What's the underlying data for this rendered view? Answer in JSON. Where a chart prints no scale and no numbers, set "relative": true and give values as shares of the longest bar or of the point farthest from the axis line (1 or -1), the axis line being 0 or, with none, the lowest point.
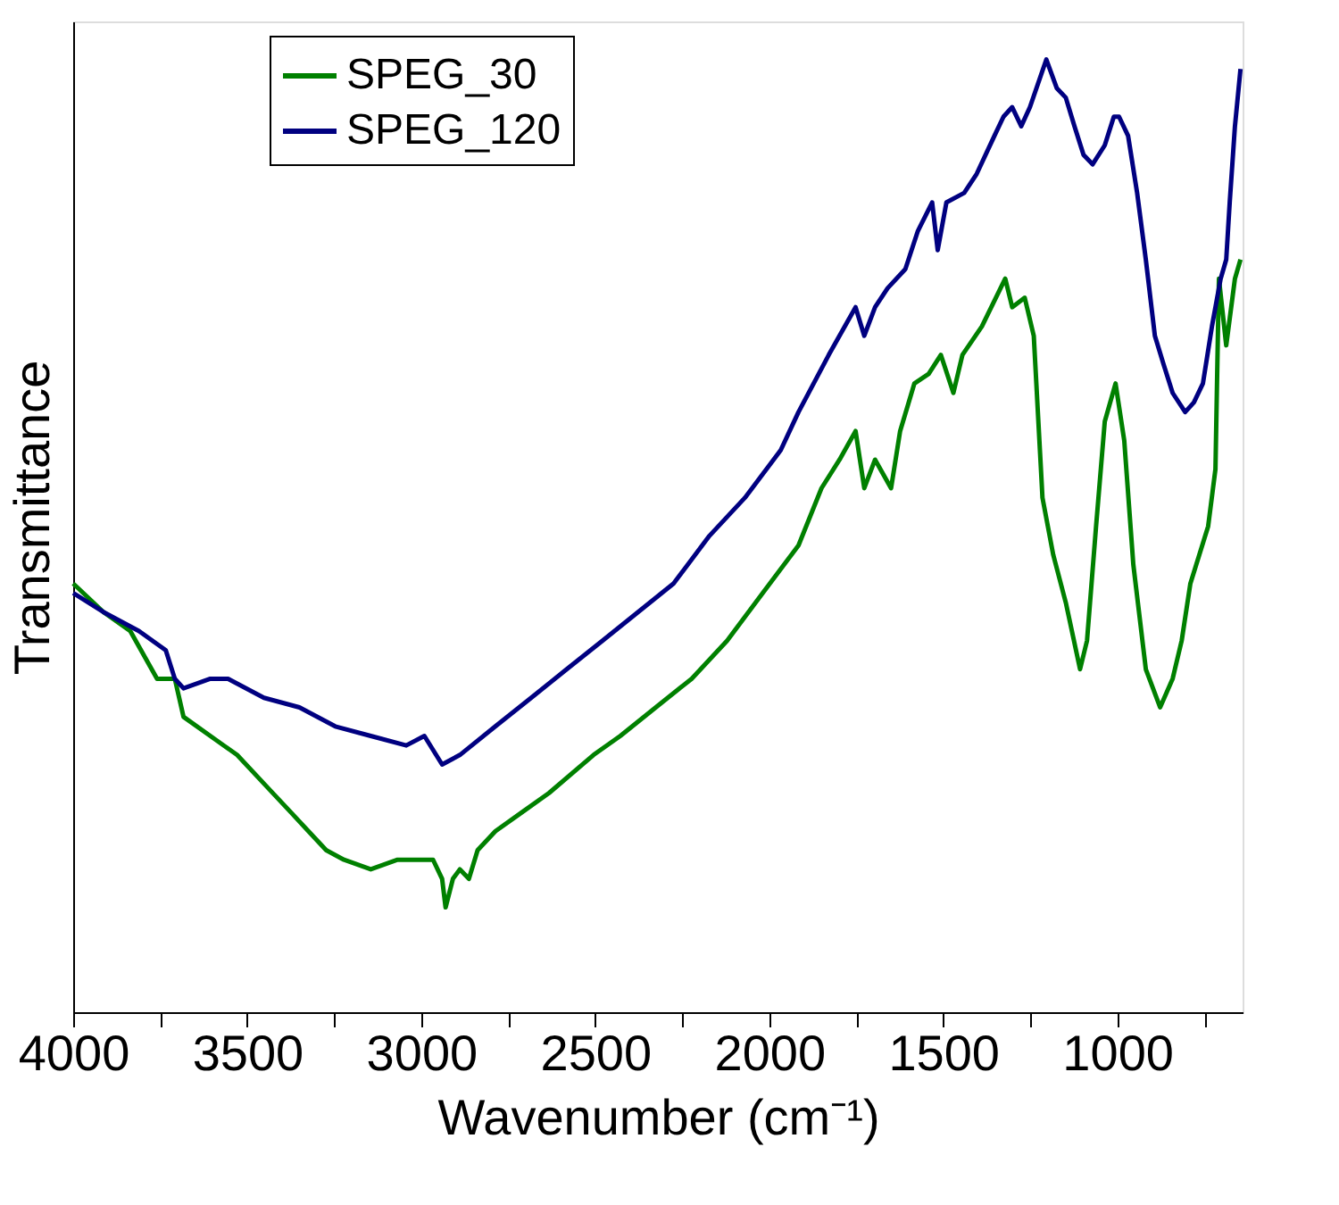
{
  "chart_data": {
    "type": "line",
    "relative": true,
    "xlabel": "Wavenumber (cm⁻¹)",
    "ylabel": "Transmittance",
    "xlim": [
      4000,
      640
    ],
    "xticks": [
      4000,
      {
        "value": 3750,
        "label": null
      },
      3500,
      {
        "value": 3250,
        "label": null
      },
      3000,
      {
        "value": 2750,
        "label": null
      },
      2500,
      {
        "value": 2250,
        "label": null
      },
      2000,
      {
        "value": 1750,
        "label": null
      },
      1500,
      {
        "value": 1250,
        "label": null
      },
      1000,
      {
        "value": 750,
        "label": null
      }
    ],
    "legend": "top left",
    "grid": false,
    "line_style": "solid",
    "marker": "none",
    "tick_labels": "x",
    "series": [
      {
        "name": "SPEG_30",
        "color": "#008000",
        "x": [
          4000,
          3913,
          3836,
          3759,
          3708,
          3683,
          3606,
          3529,
          3452,
          3375,
          3324,
          3273,
          3222,
          3145,
          3068,
          2991,
          2966,
          2940,
          2930,
          2909,
          2889,
          2863,
          2838,
          2787,
          2710,
          2633,
          2505,
          2428,
          2326,
          2223,
          2121,
          2019,
          1916,
          1850,
          1798,
          1752,
          1727,
          1696,
          1650,
          1624,
          1583,
          1542,
          1507,
          1471,
          1445,
          1389,
          1322,
          1302,
          1266,
          1240,
          1215,
          1184,
          1148,
          1107,
          1087,
          1061,
          1036,
          1005,
          980,
          954,
          918,
          877,
          841,
          815,
          790,
          739,
          718,
          708,
          687,
          662,
          646
        ],
        "values": [
          0.45,
          0.42,
          0.4,
          0.35,
          0.35,
          0.31,
          0.29,
          0.27,
          0.24,
          0.21,
          0.19,
          0.17,
          0.16,
          0.15,
          0.16,
          0.16,
          0.16,
          0.14,
          0.11,
          0.14,
          0.15,
          0.14,
          0.17,
          0.19,
          0.21,
          0.23,
          0.27,
          0.29,
          0.32,
          0.35,
          0.39,
          0.44,
          0.49,
          0.55,
          0.58,
          0.61,
          0.55,
          0.58,
          0.55,
          0.61,
          0.66,
          0.67,
          0.69,
          0.65,
          0.69,
          0.72,
          0.77,
          0.74,
          0.75,
          0.71,
          0.54,
          0.48,
          0.43,
          0.36,
          0.39,
          0.51,
          0.62,
          0.66,
          0.6,
          0.47,
          0.36,
          0.32,
          0.35,
          0.39,
          0.45,
          0.51,
          0.57,
          0.77,
          0.7,
          0.77,
          0.79
        ]
      },
      {
        "name": "SPEG_120",
        "color": "#000080",
        "x": [
          4000,
          3913,
          3811,
          3734,
          3708,
          3683,
          3606,
          3555,
          3452,
          3350,
          3247,
          3145,
          3043,
          2991,
          2940,
          2889,
          2787,
          2684,
          2582,
          2479,
          2377,
          2275,
          2172,
          2070,
          1967,
          1916,
          1829,
          1752,
          1727,
          1696,
          1660,
          1609,
          1573,
          1532,
          1516,
          1491,
          1440,
          1404,
          1353,
          1327,
          1302,
          1276,
          1251,
          1204,
          1174,
          1148,
          1123,
          1097,
          1071,
          1036,
          1010,
          995,
          969,
          943,
          918,
          892,
          867,
          841,
          805,
          780,
          754,
          728,
          703,
          687,
          677,
          662,
          646
        ],
        "values": [
          0.44,
          0.42,
          0.4,
          0.38,
          0.35,
          0.34,
          0.35,
          0.35,
          0.33,
          0.32,
          0.3,
          0.29,
          0.28,
          0.29,
          0.26,
          0.27,
          0.3,
          0.33,
          0.36,
          0.39,
          0.42,
          0.45,
          0.5,
          0.54,
          0.59,
          0.63,
          0.69,
          0.74,
          0.71,
          0.74,
          0.76,
          0.78,
          0.82,
          0.85,
          0.8,
          0.85,
          0.86,
          0.88,
          0.92,
          0.94,
          0.95,
          0.93,
          0.95,
          1.0,
          0.97,
          0.96,
          0.93,
          0.9,
          0.89,
          0.91,
          0.94,
          0.94,
          0.92,
          0.86,
          0.79,
          0.71,
          0.68,
          0.65,
          0.63,
          0.64,
          0.66,
          0.72,
          0.77,
          0.79,
          0.85,
          0.93,
          0.99
        ]
      }
    ]
  }
}
